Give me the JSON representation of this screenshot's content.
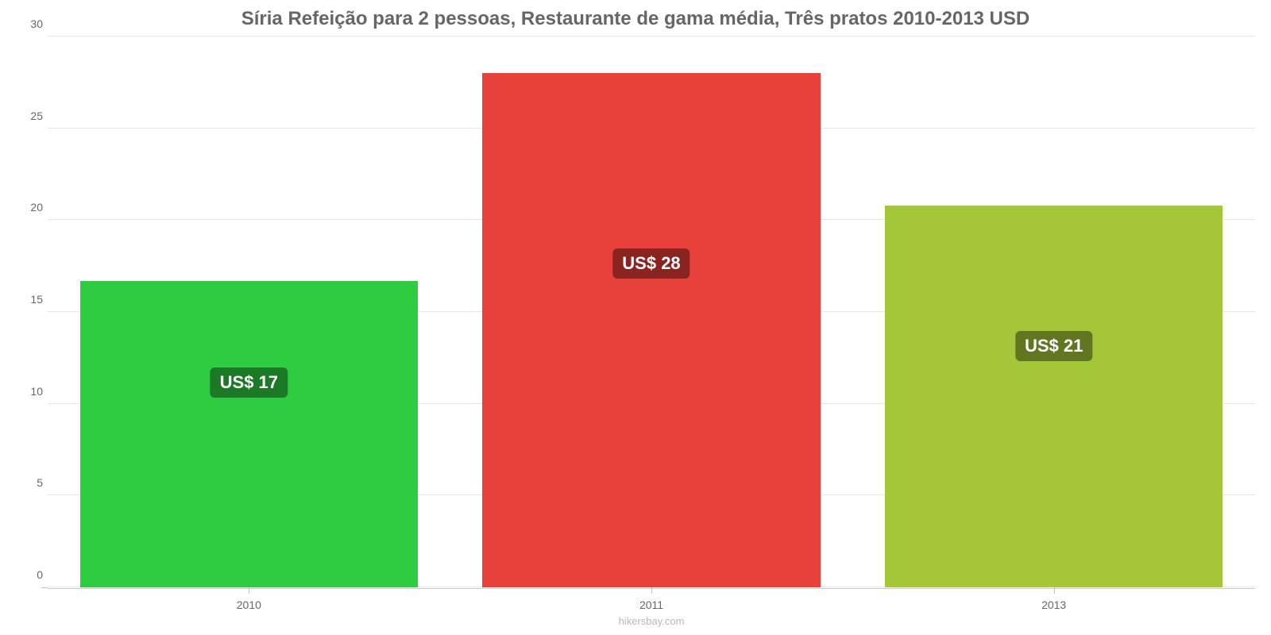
{
  "chart": {
    "type": "bar",
    "title": "Síria Refeição para 2 pessoas, Restaurante de gama média, Três pratos 2010-2013 USD",
    "title_fontsize": 24,
    "title_color": "#666666",
    "background_color": "#ffffff",
    "grid_color": "#e6e6e6",
    "axis_tick_color": "#cccccc",
    "tick_label_color": "#666666",
    "tick_label_fontsize": 14,
    "ylim": [
      0,
      30
    ],
    "ytick_step": 5,
    "yticks": [
      {
        "value": 0,
        "label": "0"
      },
      {
        "value": 5,
        "label": "5"
      },
      {
        "value": 10,
        "label": "10"
      },
      {
        "value": 15,
        "label": "15"
      },
      {
        "value": 20,
        "label": "20"
      },
      {
        "value": 25,
        "label": "25"
      },
      {
        "value": 30,
        "label": "30"
      }
    ],
    "categories": [
      "2010",
      "2011",
      "2013"
    ],
    "bar_width_pct": 28.0,
    "bar_gap_pct": 5.333,
    "bars": [
      {
        "category": "2010",
        "value": 16.7,
        "fill_color": "#2ecc40",
        "label_text": "US$ 17",
        "label_bg": "#1c7a26",
        "label_text_color": "#ffffff",
        "label_y_value": 9.5
      },
      {
        "category": "2011",
        "value": 28.0,
        "fill_color": "#e8403a",
        "label_text": "US$ 28",
        "label_bg": "#8a2420",
        "label_text_color": "#ffffff",
        "label_y_value": 16.0
      },
      {
        "category": "2013",
        "value": 20.8,
        "fill_color": "#a4c639",
        "label_text": "US$ 21",
        "label_bg": "#627621",
        "label_text_color": "#ffffff",
        "label_y_value": 11.5
      }
    ],
    "label_fontsize": 22,
    "label_font_weight": 600,
    "label_border_radius": 6,
    "attribution": "hikersbay.com",
    "attribution_color": "#b8b8b8",
    "attribution_fontsize": 13
  }
}
